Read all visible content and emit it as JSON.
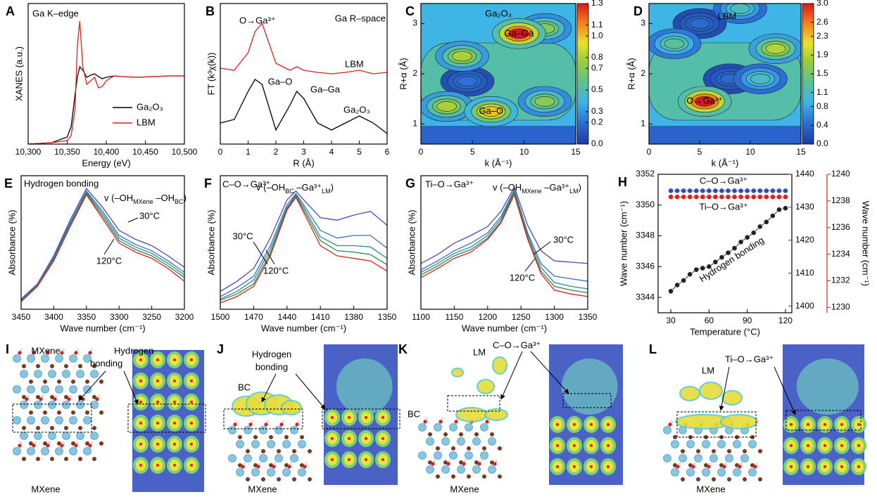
{
  "chart_data": [
    {
      "panel": "A",
      "type": "line",
      "xlabel": "Energy (eV)",
      "ylabel": "XANES (a.u.)",
      "annotations": [
        {
          "text": "Ga K–edge"
        }
      ],
      "legend": "lower right",
      "x": [
        10300,
        10330,
        10350,
        10355,
        10360,
        10363,
        10366,
        10370,
        10375,
        10380,
        10385,
        10390,
        10395,
        10400,
        10410,
        10420,
        10440,
        10460,
        10480,
        10500
      ],
      "xlim": [
        10300,
        10500
      ],
      "xticks": [
        {
          "value": 10300,
          "label": "10,300"
        },
        {
          "value": 10350,
          "label": "10,350"
        },
        {
          "value": 10400,
          "label": "10,400"
        },
        {
          "value": 10450,
          "label": "10,450"
        },
        {
          "value": 10500,
          "label": "10,500"
        }
      ],
      "ylim": [
        0,
        2
      ],
      "series": [
        {
          "name": "Ga₂O₃",
          "color": "#000000",
          "values": [
            0.0,
            0.02,
            0.1,
            0.25,
            0.7,
            0.95,
            1.1,
            1.05,
            0.95,
            0.98,
            1.0,
            0.96,
            0.93,
            0.95,
            0.97,
            0.96,
            0.95,
            0.96,
            0.97,
            0.97
          ]
        },
        {
          "name": "LBM",
          "color": "#e0201b",
          "values": [
            0.0,
            0.02,
            0.05,
            0.12,
            0.5,
            1.4,
            1.75,
            1.1,
            0.85,
            0.9,
            0.95,
            0.8,
            0.82,
            0.9,
            0.97,
            0.96,
            0.95,
            0.96,
            0.97,
            0.97
          ]
        }
      ]
    },
    {
      "panel": "B",
      "type": "line",
      "xlabel": "R (Å)",
      "ylabel": "FT (k³χ(k))",
      "annotations": [
        {
          "text": "O→Ga³⁺",
          "color": "#e0201b"
        },
        {
          "text": "Ga R–space"
        },
        {
          "text": "Ga–O"
        },
        {
          "text": "Ga–Ga"
        }
      ],
      "x": [
        0,
        0.5,
        1,
        1.25,
        1.5,
        2,
        2.5,
        2.75,
        3,
        3.5,
        4,
        4.5,
        5,
        5.5,
        6
      ],
      "xlim": [
        0,
        6
      ],
      "xticks": [
        0,
        1,
        2,
        3,
        4,
        5,
        6
      ],
      "ylim": [
        0,
        2
      ],
      "series": [
        {
          "name": "LBM",
          "color": "#e0201b",
          "values": [
            1.08,
            1.05,
            1.3,
            1.6,
            1.72,
            1.15,
            1.05,
            1.1,
            1.05,
            1.02,
            1.0,
            1.02,
            1.05,
            1.0,
            1.02
          ]
        },
        {
          "name": "Ga₂O₃",
          "color": "#000000",
          "values": [
            0.3,
            0.35,
            0.75,
            0.92,
            0.85,
            0.2,
            0.55,
            0.75,
            0.65,
            0.3,
            0.2,
            0.3,
            0.4,
            0.3,
            0.15
          ]
        }
      ]
    },
    {
      "panel": "C",
      "type": "contour",
      "xlabel": "k (Å⁻¹)",
      "ylabel": "R+α (Å)",
      "annotations": [
        {
          "text": "Ga₂O₃"
        }
      ],
      "xlim": [
        0,
        15
      ],
      "xticks": [
        0,
        5,
        10,
        15
      ],
      "ylim": [
        0.6,
        3.4
      ],
      "yticks": [
        1,
        2,
        3
      ],
      "clim": [
        0,
        1.3
      ],
      "cticks": [
        {
          "value": 0,
          "label": "0.0"
        },
        0.2,
        0.3,
        0.5,
        0.7,
        0.8,
        {
          "value": 1,
          "label": "1.0"
        },
        1.1,
        1.3
      ],
      "peaks": [
        {
          "k": 4.5,
          "r": 1.85,
          "value": 0.2
        },
        {
          "k": 2.5,
          "r": 1.35,
          "value": 0.8
        },
        {
          "k": 12,
          "r": 1.45,
          "value": 0.7
        },
        {
          "k": 4,
          "r": 2.35,
          "value": 0.8
        },
        {
          "k": 12,
          "r": 2.9,
          "value": 0.7
        },
        {
          "label": "Ga–O",
          "k": 6.8,
          "r": 1.25,
          "value": 1.0
        },
        {
          "label": "Ga–Ga",
          "k": 9.5,
          "r": 2.8,
          "value": 1.3
        }
      ]
    },
    {
      "panel": "D",
      "type": "contour",
      "xlabel": "k (Å⁻¹)",
      "ylabel": "R+α (Å)",
      "annotations": [
        {
          "text": "LBM"
        }
      ],
      "xlim": [
        0,
        15
      ],
      "xticks": [
        0,
        5,
        10,
        15
      ],
      "ylim": [
        0.6,
        3.4
      ],
      "yticks": [
        1,
        2,
        3
      ],
      "clim": [
        0,
        3
      ],
      "cticks": [
        {
          "value": 0,
          "label": "0.0"
        },
        0.4,
        0.8,
        1.1,
        1.5,
        1.9,
        2.3,
        2.6,
        {
          "value": 3,
          "label": "3.0"
        }
      ],
      "peaks": [
        {
          "k": 5,
          "r": 3.0,
          "value": 0.4
        },
        {
          "k": 8,
          "r": 1.9,
          "value": 0.4
        },
        {
          "k": 2.5,
          "r": 2.6,
          "value": 1.3
        },
        {
          "k": 11,
          "r": 1.9,
          "value": 1.1
        },
        {
          "k": 9,
          "r": 3.3,
          "value": 1.1
        },
        {
          "k": 12.5,
          "r": 2.5,
          "value": 1.9
        },
        {
          "label": "O→Ga³⁺",
          "k": 5.5,
          "r": 1.45,
          "value": 3.0
        }
      ]
    },
    {
      "panel": "E",
      "type": "line",
      "xlabel": "Wave number (cm⁻¹)",
      "ylabel": "Absorbance (%)",
      "annotations": [
        {
          "text": "Hydrogen bonding"
        }
      ],
      "peak_label": [
        "v (–OH",
        "MXene",
        " –OH",
        "BC",
        ")"
      ],
      "x": [
        3450,
        3425,
        3400,
        3375,
        3350,
        3325,
        3300,
        3275,
        3250,
        3225,
        3200
      ],
      "xlim": [
        3450,
        3200
      ],
      "xticks": [
        3450,
        3400,
        3350,
        3300,
        3250,
        3200
      ],
      "ylim": [
        0,
        1.05
      ],
      "series": [
        {
          "name": "30°C",
          "color": "#4a4ab0",
          "values": [
            0.08,
            0.2,
            0.42,
            0.7,
            0.95,
            0.8,
            0.62,
            0.55,
            0.5,
            0.42,
            0.33
          ]
        },
        {
          "color": "#3a6fc0",
          "values": [
            0.07,
            0.19,
            0.41,
            0.68,
            0.93,
            0.77,
            0.58,
            0.51,
            0.46,
            0.38,
            0.29
          ]
        },
        {
          "color": "#2a8a9a",
          "values": [
            0.07,
            0.19,
            0.4,
            0.67,
            0.92,
            0.75,
            0.56,
            0.49,
            0.44,
            0.36,
            0.27
          ]
        },
        {
          "color": "#2a8a4a",
          "values": [
            0.06,
            0.18,
            0.39,
            0.66,
            0.91,
            0.73,
            0.54,
            0.47,
            0.42,
            0.34,
            0.25
          ]
        },
        {
          "name": "120°C",
          "color": "#e0201b",
          "values": [
            0.06,
            0.18,
            0.38,
            0.65,
            0.9,
            0.71,
            0.52,
            0.45,
            0.4,
            0.32,
            0.22
          ]
        }
      ]
    },
    {
      "panel": "F",
      "type": "line",
      "xlabel": "Wave number (cm⁻¹)",
      "ylabel": "Absorbance (%)",
      "annotations": [
        {
          "text": "C–O→Ga³⁺",
          "color": "#2a3f9e"
        }
      ],
      "peak_label": [
        "v (–OH",
        "BC",
        " –Ga³⁺",
        "LM",
        ")"
      ],
      "x": [
        1500,
        1485,
        1470,
        1455,
        1440,
        1432,
        1425,
        1410,
        1395,
        1380,
        1365,
        1350
      ],
      "xlim": [
        1500,
        1350
      ],
      "xticks": [
        1500,
        1470,
        1440,
        1410,
        1380,
        1350
      ],
      "ylim": [
        0,
        1.05
      ],
      "series": [
        {
          "name": "30°C",
          "color": "#4a4ab0",
          "values": [
            0.14,
            0.22,
            0.32,
            0.56,
            0.86,
            0.93,
            0.86,
            0.72,
            0.7,
            0.74,
            0.77,
            0.66
          ]
        },
        {
          "color": "#3a6fc0",
          "values": [
            0.1,
            0.17,
            0.26,
            0.5,
            0.82,
            0.91,
            0.82,
            0.62,
            0.56,
            0.58,
            0.58,
            0.48
          ]
        },
        {
          "color": "#2a8a9a",
          "values": [
            0.08,
            0.14,
            0.23,
            0.47,
            0.8,
            0.9,
            0.8,
            0.57,
            0.5,
            0.5,
            0.49,
            0.4
          ]
        },
        {
          "color": "#2a8a4a",
          "values": [
            0.07,
            0.12,
            0.2,
            0.44,
            0.79,
            0.89,
            0.78,
            0.54,
            0.46,
            0.45,
            0.43,
            0.35
          ]
        },
        {
          "name": "120°C",
          "color": "#e0201b",
          "values": [
            0.05,
            0.1,
            0.18,
            0.42,
            0.78,
            0.88,
            0.76,
            0.5,
            0.42,
            0.4,
            0.38,
            0.3
          ]
        }
      ]
    },
    {
      "panel": "G",
      "type": "line",
      "xlabel": "Wave number (cm⁻¹)",
      "ylabel": "Absorbance (%)",
      "annotations": [
        {
          "text": "Ti–O→Ga³⁺",
          "color": "#e0201b"
        }
      ],
      "peak_label": [
        "v (–OH",
        "MXene",
        " –Ga³⁺",
        "LM",
        ")"
      ],
      "x": [
        1100,
        1125,
        1150,
        1175,
        1200,
        1220,
        1240,
        1260,
        1280,
        1300,
        1325,
        1350
      ],
      "xlim": [
        1100,
        1350
      ],
      "xticks": [
        1100,
        1150,
        1200,
        1250,
        1300,
        1350
      ],
      "ylim": [
        0,
        1.05
      ],
      "series": [
        {
          "name": "30°C",
          "color": "#4a4ab0",
          "values": [
            0.36,
            0.43,
            0.52,
            0.58,
            0.65,
            0.77,
            0.96,
            0.66,
            0.46,
            0.38,
            0.37,
            0.36
          ]
        },
        {
          "color": "#3a6fc0",
          "values": [
            0.31,
            0.38,
            0.46,
            0.52,
            0.6,
            0.73,
            0.94,
            0.6,
            0.36,
            0.26,
            0.24,
            0.22
          ]
        },
        {
          "color": "#2a8a9a",
          "values": [
            0.29,
            0.36,
            0.44,
            0.49,
            0.58,
            0.71,
            0.93,
            0.58,
            0.33,
            0.21,
            0.18,
            0.16
          ]
        },
        {
          "color": "#2a8a4a",
          "values": [
            0.27,
            0.34,
            0.42,
            0.47,
            0.56,
            0.69,
            0.92,
            0.56,
            0.3,
            0.18,
            0.15,
            0.13
          ]
        },
        {
          "name": "120°C",
          "color": "#e0201b",
          "values": [
            0.25,
            0.32,
            0.4,
            0.45,
            0.55,
            0.68,
            0.9,
            0.55,
            0.28,
            0.15,
            0.12,
            0.1
          ]
        }
      ]
    },
    {
      "panel": "H",
      "type": "line",
      "markers": true,
      "xlabel": "Temperature (°C)",
      "ylabel": "Wave number (cm⁻¹)",
      "y3label": "Wave number (cm⁻¹)",
      "x": [
        30,
        35,
        40,
        45,
        50,
        55,
        60,
        65,
        70,
        75,
        80,
        85,
        90,
        95,
        100,
        105,
        110,
        115,
        120
      ],
      "xlim": [
        20,
        125
      ],
      "xticks": [
        30,
        60,
        90,
        120
      ],
      "ylim": [
        3343,
        3352
      ],
      "yticks": [
        3344,
        3346,
        3348,
        3350,
        3352
      ],
      "y2lim": [
        1398,
        1440
      ],
      "y2ticks": [
        1400,
        1410,
        1420,
        1430,
        1440
      ],
      "y2color": "#2a3f9e",
      "y3lim": [
        1229.6,
        1240
      ],
      "y3ticks": [
        1230,
        1232,
        1234,
        1236,
        1238,
        1240
      ],
      "y3color": "#e0201b",
      "series": [
        {
          "name": "Hydrogen bonding",
          "color": "#222222",
          "values": [
            3344.4,
            3344.8,
            3345.1,
            3345.5,
            3345.8,
            3345.9,
            3346.0,
            3346.3,
            3346.6,
            3346.9,
            3347.2,
            3347.6,
            3347.9,
            3348.2,
            3348.6,
            3348.9,
            3349.3,
            3349.7,
            3349.8
          ]
        },
        {
          "name": "C–O→Ga³⁺",
          "color": "#2a4fb8",
          "axis": "y2",
          "values": [
            1435,
            1435,
            1435,
            1435,
            1435,
            1435,
            1435,
            1435,
            1435,
            1435,
            1435,
            1435,
            1435,
            1435,
            1435,
            1435,
            1435,
            1435,
            1435
          ]
        },
        {
          "name": "Ti–O→Ga³⁺",
          "color": "#e0201b",
          "axis": "y3",
          "values": [
            1238.3,
            1238.3,
            1238.3,
            1238.3,
            1238.3,
            1238.3,
            1238.3,
            1238.3,
            1238.3,
            1238.3,
            1238.3,
            1238.3,
            1238.3,
            1238.3,
            1238.3,
            1238.3,
            1238.3,
            1238.3,
            1238.3
          ]
        }
      ]
    }
  ],
  "structures": [
    {
      "panel": "I",
      "labels": [
        {
          "text": "MXene"
        },
        {
          "text": "Hydrogen"
        },
        {
          "text": "bonding"
        },
        {
          "text": "MXene"
        }
      ]
    },
    {
      "panel": "J",
      "labels": [
        {
          "text": "Hydrogen"
        },
        {
          "text": "bonding"
        },
        {
          "text": "BC"
        },
        {
          "text": "MXene"
        }
      ]
    },
    {
      "panel": "K",
      "labels": [
        {
          "text": "LM"
        },
        {
          "text": "C–O→Ga³⁺",
          "color": "#2a3f9e"
        },
        {
          "text": "BC"
        },
        {
          "text": "MXene"
        }
      ]
    },
    {
      "panel": "L",
      "labels": [
        {
          "text": "LM"
        },
        {
          "text": "Ti–O→Ga³⁺",
          "color": "#e0201b"
        },
        {
          "text": "MXene"
        }
      ]
    }
  ]
}
